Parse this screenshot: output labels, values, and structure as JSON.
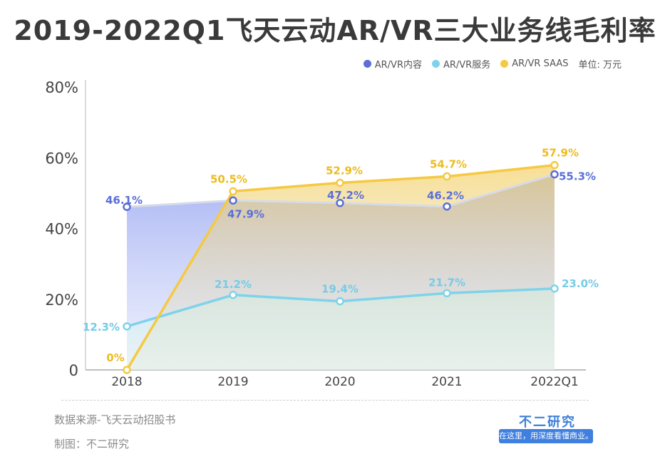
{
  "header": {
    "title": "2019-2022Q1飞天云动AR/VR三大业务线毛利率"
  },
  "legend": {
    "unit": "单位: 万元"
  },
  "chart_data": {
    "type": "area",
    "title": "2019-2022Q1飞天云动AR/VR三大业务线毛利率",
    "categories": [
      "2018",
      "2019",
      "2020",
      "2021",
      "2022Q1"
    ],
    "y_ticks": [
      "0",
      "20%",
      "40%",
      "60%",
      "80%"
    ],
    "ylim": [
      0,
      80
    ],
    "legend_position": "top-right",
    "series": [
      {
        "name": "AR/VR内容",
        "color": "#5b6fd6",
        "values": [
          46.1,
          47.9,
          47.2,
          46.2,
          55.3
        ],
        "labels": [
          "46.1%",
          "47.9%",
          "47.2%",
          "46.2%",
          "55.3%"
        ]
      },
      {
        "name": "AR/VR服务",
        "color": "#7ed3ea",
        "values": [
          12.3,
          21.2,
          19.4,
          21.7,
          23.0
        ],
        "labels": [
          "12.3%",
          "21.2%",
          "19.4%",
          "21.7%",
          "23.0%"
        ]
      },
      {
        "name": "AR/VR SAAS",
        "color": "#f5c942",
        "values": [
          0,
          50.5,
          52.9,
          54.7,
          57.9
        ],
        "labels": [
          "0%",
          "50.5%",
          "52.9%",
          "54.7%",
          "57.9%"
        ]
      }
    ]
  },
  "footer": {
    "source": "数据来源-飞天云动招股书",
    "maker": "制图：不二研究",
    "brand": "不二研究",
    "slogan": "在这里，用深度看懂商业。"
  }
}
